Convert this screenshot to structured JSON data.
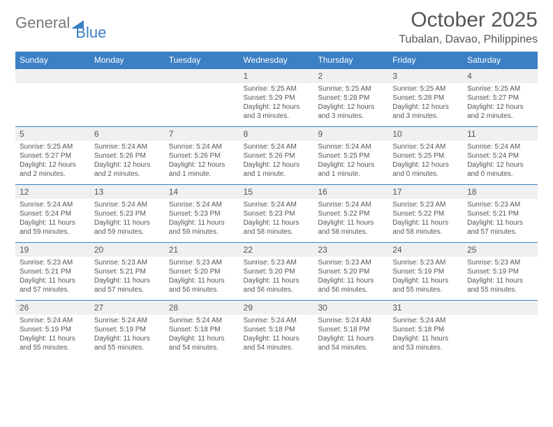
{
  "brand": {
    "part1": "General",
    "part2": "Blue"
  },
  "title": "October 2025",
  "location": "Tubalan, Davao, Philippines",
  "colors": {
    "accent": "#3b7fc4",
    "date_bg": "#eef0f2",
    "text": "#555555",
    "background": "#ffffff"
  },
  "typography": {
    "title_fontsize": 30,
    "location_fontsize": 16,
    "dayhead_fontsize": 12,
    "date_fontsize": 12,
    "body_fontsize": 10
  },
  "day_headers": [
    "Sunday",
    "Monday",
    "Tuesday",
    "Wednesday",
    "Thursday",
    "Friday",
    "Saturday"
  ],
  "weeks": [
    {
      "dates": [
        "",
        "",
        "",
        "1",
        "2",
        "3",
        "4"
      ],
      "cells": [
        {},
        {},
        {},
        {
          "sunrise": "Sunrise: 5:25 AM",
          "sunset": "Sunset: 5:29 PM",
          "daylight": "Daylight: 12 hours and 3 minutes."
        },
        {
          "sunrise": "Sunrise: 5:25 AM",
          "sunset": "Sunset: 5:28 PM",
          "daylight": "Daylight: 12 hours and 3 minutes."
        },
        {
          "sunrise": "Sunrise: 5:25 AM",
          "sunset": "Sunset: 5:28 PM",
          "daylight": "Daylight: 12 hours and 3 minutes."
        },
        {
          "sunrise": "Sunrise: 5:25 AM",
          "sunset": "Sunset: 5:27 PM",
          "daylight": "Daylight: 12 hours and 2 minutes."
        }
      ]
    },
    {
      "dates": [
        "5",
        "6",
        "7",
        "8",
        "9",
        "10",
        "11"
      ],
      "cells": [
        {
          "sunrise": "Sunrise: 5:25 AM",
          "sunset": "Sunset: 5:27 PM",
          "daylight": "Daylight: 12 hours and 2 minutes."
        },
        {
          "sunrise": "Sunrise: 5:24 AM",
          "sunset": "Sunset: 5:26 PM",
          "daylight": "Daylight: 12 hours and 2 minutes."
        },
        {
          "sunrise": "Sunrise: 5:24 AM",
          "sunset": "Sunset: 5:26 PM",
          "daylight": "Daylight: 12 hours and 1 minute."
        },
        {
          "sunrise": "Sunrise: 5:24 AM",
          "sunset": "Sunset: 5:26 PM",
          "daylight": "Daylight: 12 hours and 1 minute."
        },
        {
          "sunrise": "Sunrise: 5:24 AM",
          "sunset": "Sunset: 5:25 PM",
          "daylight": "Daylight: 12 hours and 1 minute."
        },
        {
          "sunrise": "Sunrise: 5:24 AM",
          "sunset": "Sunset: 5:25 PM",
          "daylight": "Daylight: 12 hours and 0 minutes."
        },
        {
          "sunrise": "Sunrise: 5:24 AM",
          "sunset": "Sunset: 5:24 PM",
          "daylight": "Daylight: 12 hours and 0 minutes."
        }
      ]
    },
    {
      "dates": [
        "12",
        "13",
        "14",
        "15",
        "16",
        "17",
        "18"
      ],
      "cells": [
        {
          "sunrise": "Sunrise: 5:24 AM",
          "sunset": "Sunset: 5:24 PM",
          "daylight": "Daylight: 11 hours and 59 minutes."
        },
        {
          "sunrise": "Sunrise: 5:24 AM",
          "sunset": "Sunset: 5:23 PM",
          "daylight": "Daylight: 11 hours and 59 minutes."
        },
        {
          "sunrise": "Sunrise: 5:24 AM",
          "sunset": "Sunset: 5:23 PM",
          "daylight": "Daylight: 11 hours and 59 minutes."
        },
        {
          "sunrise": "Sunrise: 5:24 AM",
          "sunset": "Sunset: 5:23 PM",
          "daylight": "Daylight: 11 hours and 58 minutes."
        },
        {
          "sunrise": "Sunrise: 5:24 AM",
          "sunset": "Sunset: 5:22 PM",
          "daylight": "Daylight: 11 hours and 58 minutes."
        },
        {
          "sunrise": "Sunrise: 5:23 AM",
          "sunset": "Sunset: 5:22 PM",
          "daylight": "Daylight: 11 hours and 58 minutes."
        },
        {
          "sunrise": "Sunrise: 5:23 AM",
          "sunset": "Sunset: 5:21 PM",
          "daylight": "Daylight: 11 hours and 57 minutes."
        }
      ]
    },
    {
      "dates": [
        "19",
        "20",
        "21",
        "22",
        "23",
        "24",
        "25"
      ],
      "cells": [
        {
          "sunrise": "Sunrise: 5:23 AM",
          "sunset": "Sunset: 5:21 PM",
          "daylight": "Daylight: 11 hours and 57 minutes."
        },
        {
          "sunrise": "Sunrise: 5:23 AM",
          "sunset": "Sunset: 5:21 PM",
          "daylight": "Daylight: 11 hours and 57 minutes."
        },
        {
          "sunrise": "Sunrise: 5:23 AM",
          "sunset": "Sunset: 5:20 PM",
          "daylight": "Daylight: 11 hours and 56 minutes."
        },
        {
          "sunrise": "Sunrise: 5:23 AM",
          "sunset": "Sunset: 5:20 PM",
          "daylight": "Daylight: 11 hours and 56 minutes."
        },
        {
          "sunrise": "Sunrise: 5:23 AM",
          "sunset": "Sunset: 5:20 PM",
          "daylight": "Daylight: 11 hours and 56 minutes."
        },
        {
          "sunrise": "Sunrise: 5:23 AM",
          "sunset": "Sunset: 5:19 PM",
          "daylight": "Daylight: 11 hours and 55 minutes."
        },
        {
          "sunrise": "Sunrise: 5:23 AM",
          "sunset": "Sunset: 5:19 PM",
          "daylight": "Daylight: 11 hours and 55 minutes."
        }
      ]
    },
    {
      "dates": [
        "26",
        "27",
        "28",
        "29",
        "30",
        "31",
        ""
      ],
      "cells": [
        {
          "sunrise": "Sunrise: 5:24 AM",
          "sunset": "Sunset: 5:19 PM",
          "daylight": "Daylight: 11 hours and 55 minutes."
        },
        {
          "sunrise": "Sunrise: 5:24 AM",
          "sunset": "Sunset: 5:19 PM",
          "daylight": "Daylight: 11 hours and 55 minutes."
        },
        {
          "sunrise": "Sunrise: 5:24 AM",
          "sunset": "Sunset: 5:18 PM",
          "daylight": "Daylight: 11 hours and 54 minutes."
        },
        {
          "sunrise": "Sunrise: 5:24 AM",
          "sunset": "Sunset: 5:18 PM",
          "daylight": "Daylight: 11 hours and 54 minutes."
        },
        {
          "sunrise": "Sunrise: 5:24 AM",
          "sunset": "Sunset: 5:18 PM",
          "daylight": "Daylight: 11 hours and 54 minutes."
        },
        {
          "sunrise": "Sunrise: 5:24 AM",
          "sunset": "Sunset: 5:18 PM",
          "daylight": "Daylight: 11 hours and 53 minutes."
        },
        {}
      ]
    }
  ]
}
